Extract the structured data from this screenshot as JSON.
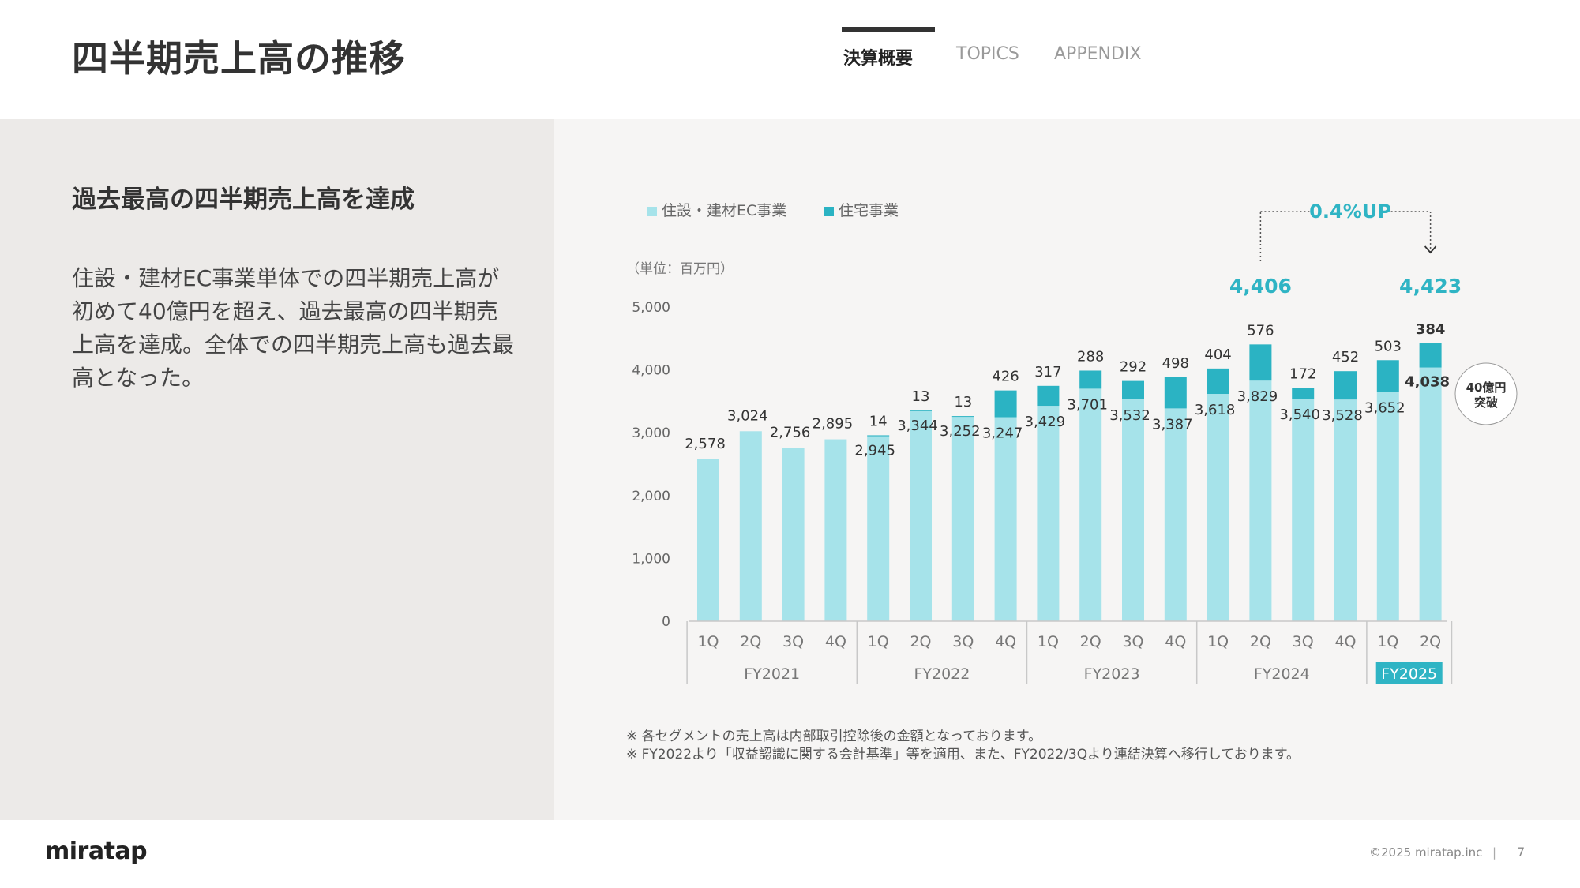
{
  "header": {
    "title": "四半期売上高の推移",
    "tabs": [
      {
        "label": "決算概要",
        "active": true
      },
      {
        "label": "TOPICS",
        "active": false
      },
      {
        "label": "APPENDIX",
        "active": false
      }
    ]
  },
  "left": {
    "headline": "過去最高の四半期売上高を達成",
    "description": "住設・建材EC事業単体での四半期売上高が初めて40億円を超え、過去最高の四半期売上高を達成。全体での四半期売上高も過去最高となった。"
  },
  "colors": {
    "ec": "#a6e3ea",
    "housing": "#2bb3c3",
    "accent": "#2fb4c4",
    "axis": "#c8c8c8",
    "text": "#444444"
  },
  "chart_data": {
    "type": "bar",
    "stacked": true,
    "unit_label": "（単位：百万円）",
    "ylim": [
      0,
      5000
    ],
    "yticks": [
      "0",
      "1,000",
      "2,000",
      "3,000",
      "4,000",
      "5,000"
    ],
    "legend": {
      "position": "top-left"
    },
    "categories": [
      "1Q",
      "2Q",
      "3Q",
      "4Q",
      "1Q",
      "2Q",
      "3Q",
      "4Q",
      "1Q",
      "2Q",
      "3Q",
      "4Q",
      "1Q",
      "2Q",
      "3Q",
      "4Q",
      "1Q",
      "2Q"
    ],
    "groups": [
      {
        "label": "FY2021",
        "count": 4,
        "highlight": false
      },
      {
        "label": "FY2022",
        "count": 4,
        "highlight": false
      },
      {
        "label": "FY2023",
        "count": 4,
        "highlight": false
      },
      {
        "label": "FY2024",
        "count": 4,
        "highlight": false
      },
      {
        "label": "FY2025",
        "count": 2,
        "highlight": true
      }
    ],
    "series": [
      {
        "name": "住設・建材EC事業",
        "values": [
          2578,
          3024,
          2756,
          2895,
          2945,
          3344,
          3252,
          3247,
          3429,
          3701,
          3532,
          3387,
          3618,
          3829,
          3540,
          3528,
          3652,
          4038
        ],
        "labels": [
          "2,578",
          "3,024",
          "2,756",
          "2,895",
          "2,945",
          "3,344",
          "3,252",
          "3,247",
          "3,429",
          "3,701",
          "3,532",
          "3,387",
          "3,618",
          "3,829",
          "3,540",
          "3,528",
          "3,652",
          "4,038"
        ]
      },
      {
        "name": "住宅事業",
        "values": [
          0,
          0,
          0,
          0,
          14,
          13,
          13,
          426,
          317,
          288,
          292,
          498,
          404,
          576,
          172,
          452,
          503,
          384
        ],
        "labels": [
          "",
          "",
          "",
          "",
          "14",
          "13",
          "13",
          "426",
          "317",
          "288",
          "292",
          "498",
          "404",
          "576",
          "172",
          "452",
          "503",
          "384"
        ]
      }
    ],
    "comparison": {
      "from_total": "4,406",
      "to_total": "4,423",
      "change_label": "0.4%UP",
      "from_index": 13,
      "to_index": 17
    },
    "badge": {
      "line1": "40億円",
      "line2": "突破"
    },
    "notes": [
      "※ 各セグメントの売上高は内部取引控除後の金額となっております。",
      "※ FY2022より「収益認識に関する会計基準」等を適用、また、FY2022/3Qより連結決算へ移行しております。"
    ]
  },
  "footer": {
    "logo": "miratap",
    "copyright": "©2025 miratap.inc",
    "divider": "|",
    "page_number": "7"
  }
}
